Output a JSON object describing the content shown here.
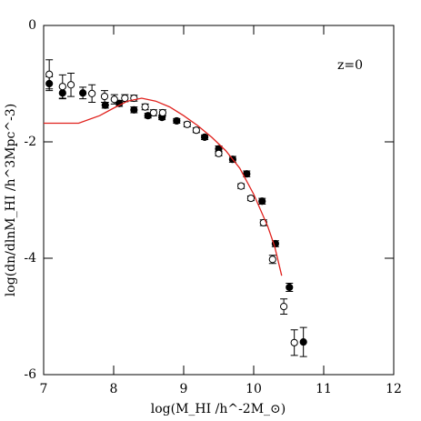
{
  "chart_data": {
    "type": "scatter",
    "xlabel": "log(M_HI /h^-2M_⊙)",
    "ylabel": "log(dn/dlnM_HI /h^3Mpc^-3)",
    "annotation": "z=0",
    "xlim": [
      7,
      12
    ],
    "ylim": [
      -6,
      0
    ],
    "xticks": [
      7,
      8,
      9,
      10,
      11,
      12
    ],
    "yticks": [
      -6,
      -4,
      -2,
      0
    ],
    "series": [
      {
        "style": "filled",
        "color": "#000000",
        "x": [
          7.08,
          7.27,
          7.56,
          7.88,
          8.08,
          8.29,
          8.49,
          8.69,
          8.9,
          9.3,
          9.5,
          9.7,
          9.9,
          10.12,
          10.31,
          10.51,
          10.71
        ],
        "values": [
          -1.0,
          -1.16,
          -1.16,
          -1.37,
          -1.34,
          -1.45,
          -1.55,
          -1.58,
          -1.64,
          -1.92,
          -2.12,
          -2.3,
          -2.55,
          -3.02,
          -3.75,
          -4.5,
          -5.44
        ],
        "errors": [
          0.12,
          0.1,
          0.1,
          0.05,
          0.05,
          0.05,
          0.04,
          0.04,
          0.04,
          0.04,
          0.05,
          0.05,
          0.05,
          0.05,
          0.05,
          0.07,
          0.25
        ]
      },
      {
        "style": "open",
        "color": "#000000",
        "x": [
          7.08,
          7.27,
          7.39,
          7.69,
          7.87,
          8.01,
          8.16,
          8.29,
          8.45,
          8.57,
          8.7,
          9.05,
          9.18,
          9.5,
          9.82,
          9.96,
          10.14,
          10.27,
          10.43,
          10.58
        ],
        "values": [
          -0.84,
          -1.05,
          -1.02,
          -1.17,
          -1.22,
          -1.27,
          -1.25,
          -1.25,
          -1.4,
          -1.5,
          -1.5,
          -1.7,
          -1.8,
          -2.2,
          -2.76,
          -2.97,
          -3.39,
          -4.02,
          -4.83,
          -5.45
        ],
        "errors": [
          0.25,
          0.2,
          0.2,
          0.15,
          0.1,
          0.08,
          0.06,
          0.05,
          0.05,
          0.05,
          0.05,
          0.04,
          0.04,
          0.04,
          0.04,
          0.04,
          0.05,
          0.07,
          0.13,
          0.22
        ]
      },
      {
        "style": "line",
        "color": "#e0201c",
        "x": [
          7,
          7.5,
          7.8,
          8.0,
          8.2,
          8.4,
          8.6,
          8.8,
          9.0,
          9.2,
          9.4,
          9.6,
          9.8,
          10.0,
          10.2,
          10.3,
          10.4
        ],
        "values": [
          -1.68,
          -1.68,
          -1.55,
          -1.42,
          -1.3,
          -1.25,
          -1.3,
          -1.4,
          -1.55,
          -1.72,
          -1.92,
          -2.15,
          -2.45,
          -2.9,
          -3.45,
          -3.8,
          -4.3
        ]
      }
    ]
  }
}
